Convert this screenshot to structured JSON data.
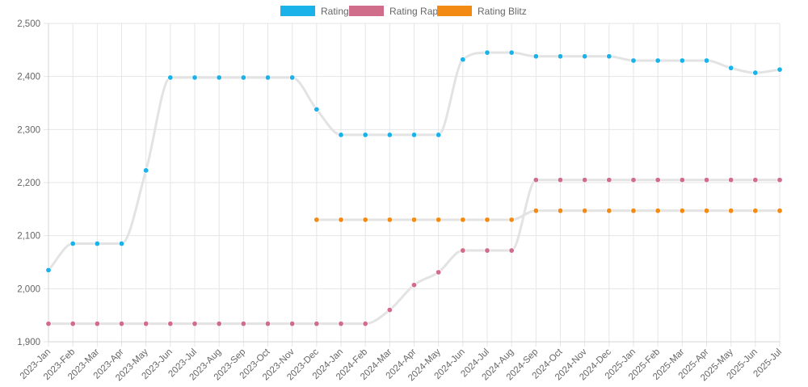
{
  "chart_data": {
    "type": "line",
    "title": "",
    "xlabel": "",
    "ylabel": "",
    "ylim": [
      1900,
      2500
    ],
    "yticks": [
      1900,
      2000,
      2100,
      2200,
      2300,
      2400,
      2500
    ],
    "ytick_labels": [
      "1,900",
      "2,000",
      "2,100",
      "2,200",
      "2,300",
      "2,400",
      "2,500"
    ],
    "legend_position": "top",
    "grid": true,
    "categories": [
      "2023-Jan",
      "2023-Feb",
      "2023-Mar",
      "2023-Apr",
      "2023-May",
      "2023-Jun",
      "2023-Jul",
      "2023-Aug",
      "2023-Sep",
      "2023-Oct",
      "2023-Nov",
      "2023-Dec",
      "2024-Jan",
      "2024-Feb",
      "2024-Mar",
      "2024-Apr",
      "2024-May",
      "2024-Jun",
      "2024-Jul",
      "2024-Aug",
      "2024-Sep",
      "2024-Oct",
      "2024-Nov",
      "2024-Dec",
      "2025-Jan",
      "2025-Feb",
      "2025-Mar",
      "2025-Apr",
      "2025-May",
      "2025-Jun",
      "2025-Jul"
    ],
    "series": [
      {
        "name": "Rating",
        "color": "#1ab2e8",
        "values": [
          2035,
          2085,
          2085,
          2085,
          2223,
          2398,
          2398,
          2398,
          2398,
          2398,
          2398,
          2338,
          2290,
          2290,
          2290,
          2290,
          2290,
          2432,
          2445,
          2445,
          2438,
          2438,
          2438,
          2438,
          2430,
          2430,
          2430,
          2430,
          2416,
          2407,
          2413
        ]
      },
      {
        "name": "Rating Rapid",
        "color": "#d06d8b",
        "values": [
          1934,
          1934,
          1934,
          1934,
          1934,
          1934,
          1934,
          1934,
          1934,
          1934,
          1934,
          1934,
          1934,
          1934,
          1960,
          2007,
          2031,
          2072,
          2072,
          2072,
          2205,
          2205,
          2205,
          2205,
          2205,
          2205,
          2205,
          2205,
          2205,
          2205,
          2205
        ]
      },
      {
        "name": "Rating Blitz",
        "color": "#f28a14",
        "values": [
          null,
          null,
          null,
          null,
          null,
          null,
          null,
          null,
          null,
          null,
          null,
          2130,
          2130,
          2130,
          2130,
          2130,
          2130,
          2130,
          2130,
          2130,
          2147,
          2147,
          2147,
          2147,
          2147,
          2147,
          2147,
          2147,
          2147,
          2147,
          2147
        ]
      }
    ]
  }
}
